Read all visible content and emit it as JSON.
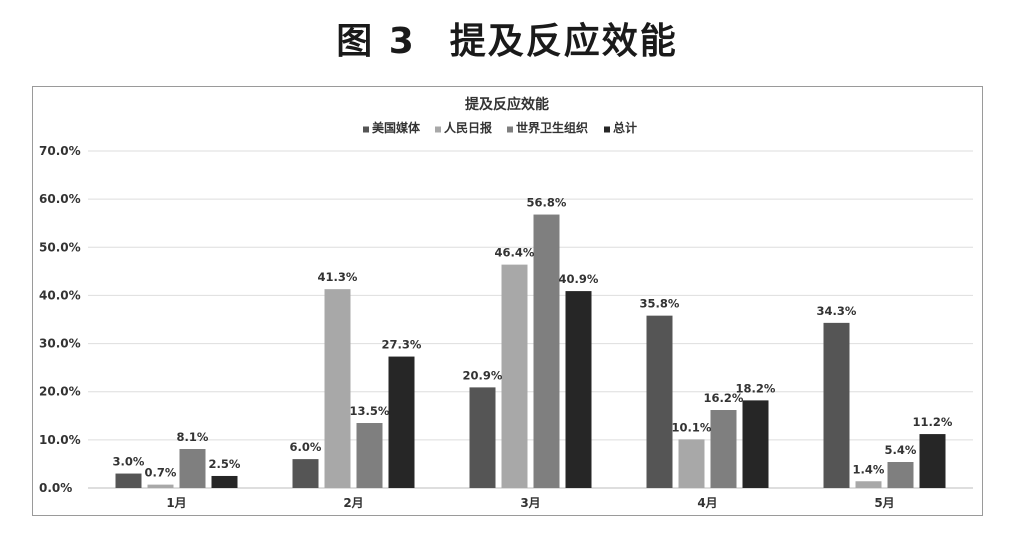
{
  "figure": {
    "number": "图 3",
    "caption": "提及反应效能"
  },
  "chart_data": {
    "type": "bar",
    "title": "提及反应效能",
    "categories": [
      "1月",
      "2月",
      "3月",
      "4月",
      "5月"
    ],
    "series": [
      {
        "name": "美国媒体",
        "color": "#555555",
        "values": [
          3.0,
          6.0,
          20.9,
          35.8,
          34.3
        ],
        "labels": [
          "3.0%",
          "6.0%",
          "20.9%",
          "35.8%",
          "34.3%"
        ]
      },
      {
        "name": "人民日报",
        "color": "#a8a8a8",
        "values": [
          0.7,
          41.3,
          46.4,
          10.1,
          1.4
        ],
        "labels": [
          "0.7%",
          "41.3%",
          "46.4%",
          "10.1%",
          "1.4%"
        ]
      },
      {
        "name": "世界卫生组织",
        "color": "#7f7f7f",
        "values": [
          8.1,
          13.5,
          56.8,
          16.2,
          5.4
        ],
        "labels": [
          "8.1%",
          "13.5%",
          "56.8%",
          "16.2%",
          "5.4%"
        ]
      },
      {
        "name": "总计",
        "color": "#262626",
        "values": [
          2.5,
          27.3,
          40.9,
          18.2,
          11.2
        ],
        "labels": [
          "2.5%",
          "27.3%",
          "40.9%",
          "18.2%",
          "11.2%"
        ]
      }
    ],
    "yticks": [
      "0.0%",
      "10.0%",
      "20.0%",
      "30.0%",
      "40.0%",
      "50.0%",
      "60.0%",
      "70.0%"
    ],
    "ylim": [
      0,
      70
    ],
    "grid": true,
    "legend": "top"
  }
}
